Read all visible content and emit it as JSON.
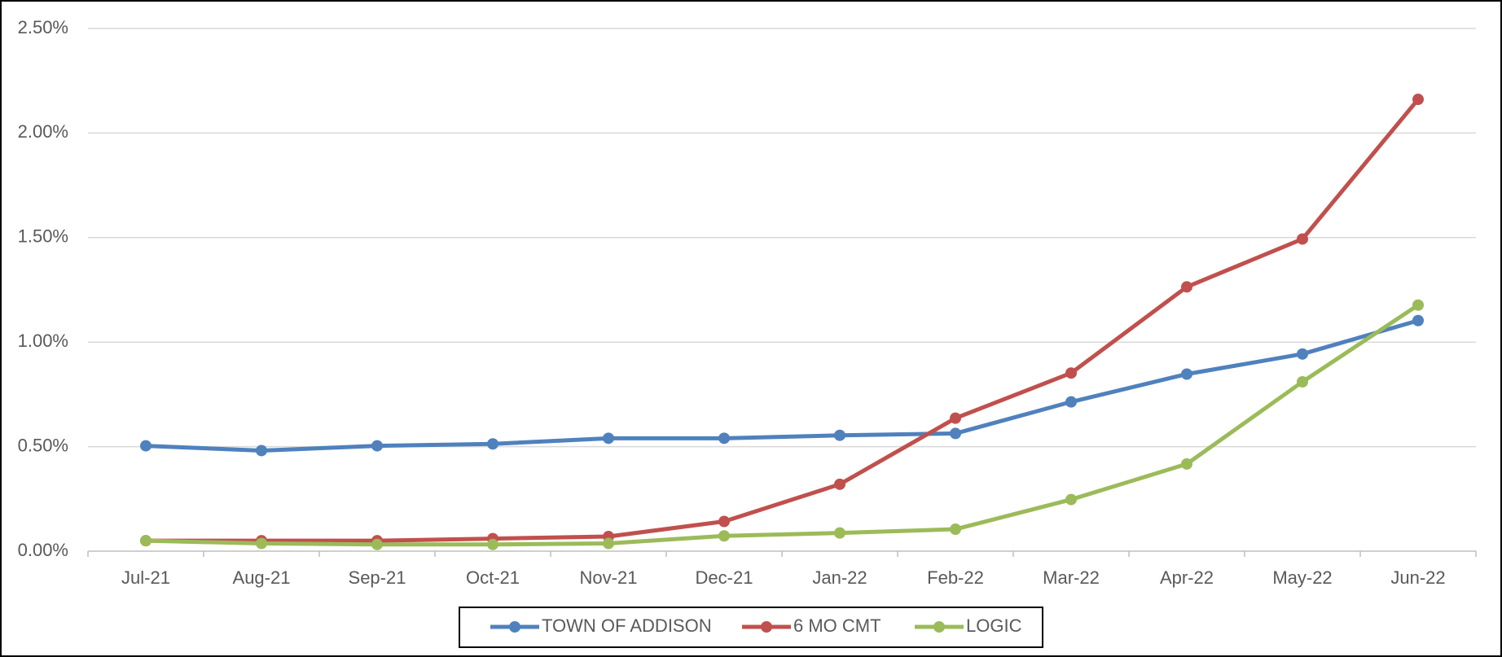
{
  "chart_data": {
    "type": "line",
    "categories": [
      "Jul-21",
      "Aug-21",
      "Sep-21",
      "Oct-21",
      "Nov-21",
      "Dec-21",
      "Jan-22",
      "Feb-22",
      "Mar-22",
      "Apr-22",
      "May-22",
      "Jun-22"
    ],
    "series": [
      {
        "name": "TOWN OF ADDISON",
        "color": "#4f81bd",
        "values": [
          0.504,
          0.481,
          0.504,
          0.513,
          0.54,
          0.54,
          0.554,
          0.563,
          0.714,
          0.847,
          0.943,
          1.103
        ]
      },
      {
        "name": "6 MO CMT",
        "color": "#c0504d",
        "values": [
          0.05,
          0.05,
          0.05,
          0.06,
          0.07,
          0.142,
          0.32,
          0.636,
          0.852,
          1.264,
          1.493,
          2.161
        ]
      },
      {
        "name": "LOGIC",
        "color": "#9bbb59",
        "values": [
          0.05,
          0.037,
          0.032,
          0.032,
          0.037,
          0.073,
          0.087,
          0.105,
          0.247,
          0.417,
          0.81,
          1.177
        ]
      }
    ],
    "ylim": [
      0,
      2.5
    ],
    "yticks": [
      {
        "value": 0,
        "label": "0.00%"
      },
      {
        "value": 0.5,
        "label": "0.50%"
      },
      {
        "value": 1,
        "label": "1.00%"
      },
      {
        "value": 1.5,
        "label": "1.50%"
      },
      {
        "value": 2,
        "label": "2.00%"
      },
      {
        "value": 2.5,
        "label": "2.50%"
      }
    ],
    "grid": true,
    "legend": "bottom"
  }
}
